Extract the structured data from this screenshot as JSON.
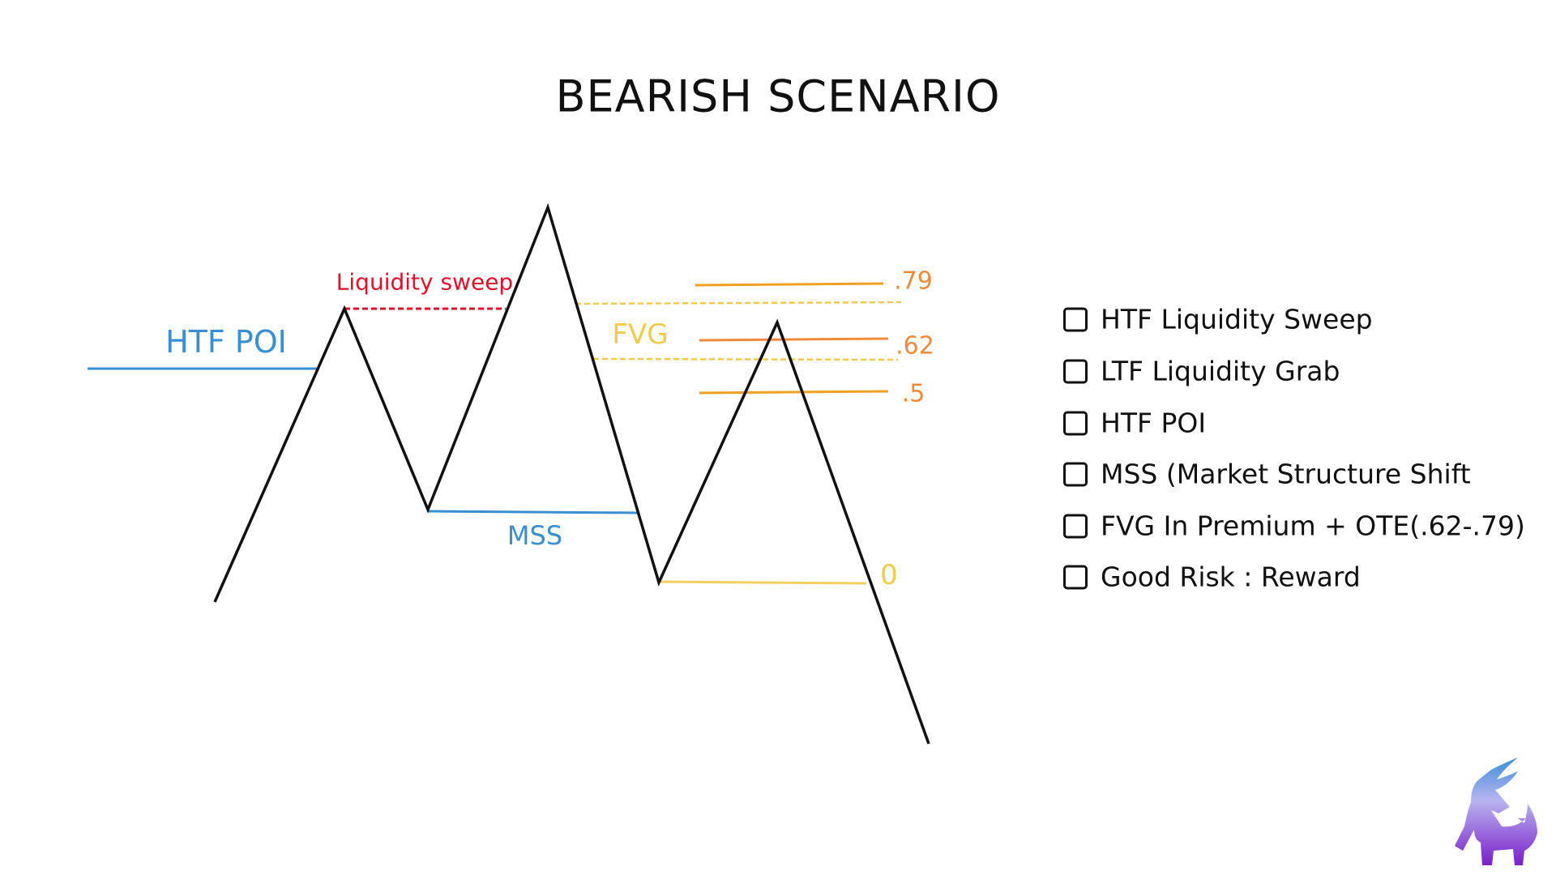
{
  "title": "BEARISH SCENARIO",
  "labels": {
    "htf_poi": "HTF POI",
    "liquidity_sweep": "Liquidity sweep",
    "mss": "MSS",
    "fvg": "FVG",
    "fib_079": ".79",
    "fib_062": ".62",
    "fib_05": ".5",
    "fib_0": "0"
  },
  "checklist": [
    {
      "label": "HTF Liquidity Sweep",
      "checked": false
    },
    {
      "label": "LTF Liquidity Grab",
      "checked": false
    },
    {
      "label": "HTF POI",
      "checked": false
    },
    {
      "label": "MSS (Market Structure Shift",
      "checked": false
    },
    {
      "label": "FVG In Premium + OTE(.62-.79)",
      "checked": false
    },
    {
      "label": "Good Risk : Reward",
      "checked": false
    }
  ],
  "colors": {
    "price": "#111111",
    "htf_poi": "#3a8fd0",
    "liquidity_sweep": "#e0102a",
    "mss": "#3a8fd0",
    "fvg": "#f2c94c",
    "fib": "#f0a020",
    "fib_label": "#f08a3a",
    "zero": "#f2d060"
  },
  "logo": "bull-logo"
}
